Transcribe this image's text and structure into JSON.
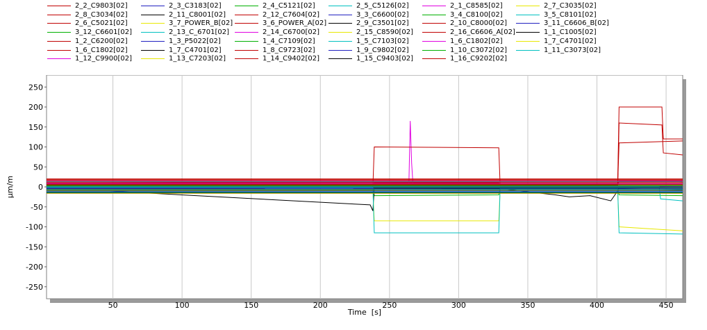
{
  "chart_data": {
    "type": "line",
    "title": "",
    "xlabel": "Time  [s]",
    "ylabel": "µm/m",
    "xlim": [
      2,
      462
    ],
    "ylim": [
      -280,
      280
    ],
    "xticks": [
      50,
      100,
      150,
      200,
      250,
      300,
      350,
      400,
      450
    ],
    "yticks": [
      -250,
      -200,
      -150,
      -100,
      -50,
      0,
      50,
      100,
      150,
      200,
      250
    ],
    "grid": true,
    "legend_position": "top",
    "series": [
      {
        "name": "2_2_C9803[02]",
        "color": "#c00000",
        "x": [
          2,
          238,
          239,
          329,
          330,
          415,
          416,
          462
        ],
        "y": [
          0,
          0,
          10,
          10,
          5,
          5,
          15,
          12
        ]
      },
      {
        "name": "2_3_C3183[02]",
        "color": "#2020c0",
        "x": [
          2,
          415,
          416,
          462
        ],
        "y": [
          0,
          0,
          -5,
          -8
        ]
      },
      {
        "name": "2_4_C5121[02]",
        "color": "#00b000",
        "x": [
          2,
          238,
          239,
          329,
          330,
          415,
          416,
          462
        ],
        "y": [
          0,
          0,
          -22,
          -20,
          -5,
          -5,
          -20,
          -22
        ]
      },
      {
        "name": "2_5_C5126[02]",
        "color": "#00c0c0",
        "x": [
          2,
          462
        ],
        "y": [
          1,
          2
        ]
      },
      {
        "name": "2_1_C8585[02]",
        "color": "#e000e0",
        "x": [
          2,
          264,
          265,
          266,
          267,
          415,
          416,
          462
        ],
        "y": [
          3,
          3,
          165,
          60,
          5,
          5,
          15,
          15
        ]
      },
      {
        "name": "2_7_C3035[02]",
        "color": "#e8e800",
        "x": [
          2,
          462
        ],
        "y": [
          -12,
          -14
        ]
      },
      {
        "name": "2_8_C3034[02]",
        "color": "#c00000",
        "x": [
          2,
          238,
          239,
          329,
          330,
          415,
          416,
          462
        ],
        "y": [
          0,
          0,
          100,
          98,
          5,
          5,
          110,
          115
        ]
      },
      {
        "name": "2_11_C8001[02]",
        "color": "#000000",
        "x": [
          2,
          236,
          238,
          239,
          329,
          330,
          370,
          380,
          395,
          410,
          415,
          416,
          462
        ],
        "y": [
          -2,
          -45,
          -60,
          -5,
          -5,
          -5,
          -20,
          -25,
          -22,
          -35,
          -10,
          0,
          -2
        ]
      },
      {
        "name": "2_12_C7604[02]",
        "color": "#c00000",
        "x": [
          2,
          415,
          416,
          447,
          448,
          462
        ],
        "y": [
          8,
          8,
          200,
          200,
          120,
          120
        ]
      },
      {
        "name": "3_3_C6600[02]",
        "color": "#2020c0",
        "x": [
          2,
          462
        ],
        "y": [
          0,
          1
        ]
      },
      {
        "name": "3_4_C8100[02]",
        "color": "#00b000",
        "x": [
          2,
          462
        ],
        "y": [
          2,
          2
        ]
      },
      {
        "name": "3_5_C8101[02]",
        "color": "#00c0c0",
        "x": [
          2,
          445,
          446,
          462
        ],
        "y": [
          0,
          0,
          -30,
          -35
        ]
      },
      {
        "name": "2_6_C5021[02]",
        "color": "#c00000",
        "x": [
          2,
          462
        ],
        "y": [
          -5,
          -6
        ]
      },
      {
        "name": "3_7_POWER_B[02]",
        "color": "#e8e800",
        "x": [
          2,
          238,
          239,
          329,
          330,
          415,
          416,
          462
        ],
        "y": [
          -8,
          -8,
          -85,
          -85,
          -10,
          -10,
          -100,
          -110
        ]
      },
      {
        "name": "3_6_POWER_A[02]",
        "color": "#c00000",
        "x": [
          2,
          415,
          416,
          447,
          448,
          462
        ],
        "y": [
          5,
          5,
          160,
          155,
          85,
          80
        ]
      },
      {
        "name": "2_9_C3501[02]",
        "color": "#000000",
        "x": [
          2,
          462
        ],
        "y": [
          -3,
          -3
        ]
      },
      {
        "name": "2_10_C8000[02]",
        "color": "#c00000",
        "x": [
          2,
          462
        ],
        "y": [
          6,
          6
        ]
      },
      {
        "name": "3_11_C6606_B[02]",
        "color": "#2020c0",
        "x": [
          2,
          462
        ],
        "y": [
          -1,
          -1
        ]
      },
      {
        "name": "3_12_C6601[02]",
        "color": "#00b000",
        "x": [
          2,
          462
        ],
        "y": [
          -2,
          -2
        ]
      },
      {
        "name": "2_13_C_6701[02]",
        "color": "#00c0c0",
        "x": [
          2,
          238,
          239,
          329,
          330,
          415,
          416,
          462
        ],
        "y": [
          -2,
          -2,
          -115,
          -115,
          -5,
          -5,
          -115,
          -118
        ]
      },
      {
        "name": "2_14_C6700[02]",
        "color": "#e000e0",
        "x": [
          2,
          462
        ],
        "y": [
          10,
          12
        ]
      },
      {
        "name": "2_15_C8590[02]",
        "color": "#e8e800",
        "x": [
          2,
          462
        ],
        "y": [
          -14,
          -15
        ]
      },
      {
        "name": "2_16_C6606_A[02]",
        "color": "#c00000",
        "x": [
          2,
          462
        ],
        "y": [
          20,
          20
        ]
      },
      {
        "name": "1_1_C1005[02]",
        "color": "#000000",
        "x": [
          2,
          462
        ],
        "y": [
          -6,
          -6
        ]
      },
      {
        "name": "1_2_C6200[02]",
        "color": "#c00000",
        "x": [
          2,
          462
        ],
        "y": [
          3,
          3
        ]
      },
      {
        "name": "1_3_P5022[02]",
        "color": "#2020c0",
        "x": [
          2,
          462
        ],
        "y": [
          -4,
          -4
        ]
      },
      {
        "name": "1_4_C7109[02]",
        "color": "#00b000",
        "x": [
          2,
          462
        ],
        "y": [
          4,
          4
        ]
      },
      {
        "name": "1_5_C7103[02]",
        "color": "#00c0c0",
        "x": [
          2,
          462
        ],
        "y": [
          -7,
          -7
        ]
      },
      {
        "name": "1_6_C1802[02]",
        "color": "#e000e0",
        "x": [
          2,
          462
        ],
        "y": [
          8,
          8
        ]
      },
      {
        "name": "1_7_C4701[02]",
        "color": "#e8e800",
        "x": [
          2,
          462
        ],
        "y": [
          -9,
          -9
        ]
      },
      {
        "name": "1_6_C1802[02]",
        "color": "#c00000",
        "x": [
          2,
          462
        ],
        "y": [
          9,
          9
        ]
      },
      {
        "name": "1_7_C4701[02]",
        "color": "#000000",
        "x": [
          2,
          462
        ],
        "y": [
          -10,
          -10
        ]
      },
      {
        "name": "1_8_C9723[02]",
        "color": "#c00000",
        "x": [
          2,
          462
        ],
        "y": [
          12,
          12
        ]
      },
      {
        "name": "1_9_C9802[02]",
        "color": "#2020c0",
        "x": [
          2,
          462
        ],
        "y": [
          -11,
          -11
        ]
      },
      {
        "name": "1_10_C3072[02]",
        "color": "#00b000",
        "x": [
          2,
          462
        ],
        "y": [
          13,
          13
        ]
      },
      {
        "name": "1_11_C3073[02]",
        "color": "#00c0c0",
        "x": [
          2,
          462
        ],
        "y": [
          -13,
          -13
        ]
      },
      {
        "name": "1_12_C9900[02]",
        "color": "#e000e0",
        "x": [
          2,
          462
        ],
        "y": [
          14,
          14
        ]
      },
      {
        "name": "1_13_C7203[02]",
        "color": "#e8e800",
        "x": [
          2,
          462
        ],
        "y": [
          -16,
          -16
        ]
      },
      {
        "name": "1_14_C9402[02]",
        "color": "#c00000",
        "x": [
          2,
          462
        ],
        "y": [
          16,
          16
        ]
      },
      {
        "name": "1_15_C9403[02]",
        "color": "#000000",
        "x": [
          2,
          462
        ],
        "y": [
          -15,
          -15
        ]
      },
      {
        "name": "1_16_C9202[02]",
        "color": "#c00000",
        "x": [
          2,
          462
        ],
        "y": [
          18,
          18
        ]
      }
    ]
  }
}
